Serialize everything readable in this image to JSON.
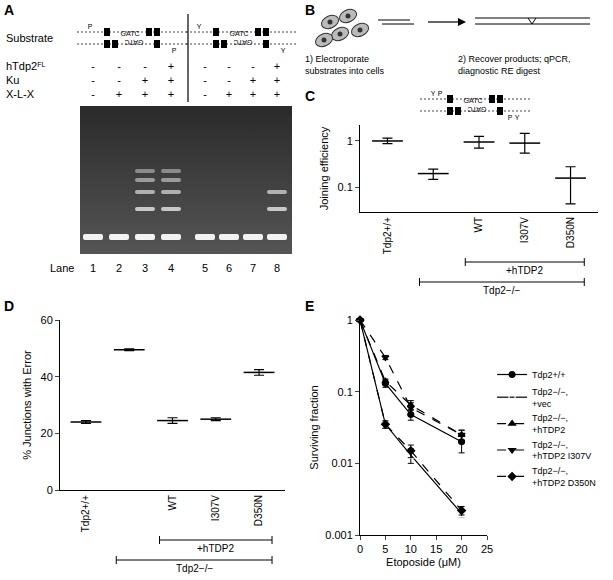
{
  "panel_letters": [
    "A",
    "B",
    "C",
    "D",
    "E"
  ],
  "panel_a": {
    "substrate_label": "Substrate",
    "substrates": [
      {
        "end": "P",
        "overhang": "GATC"
      },
      {
        "end": "Y",
        "overhang": "GATC"
      }
    ],
    "rows": [
      {
        "label": "hTdp2",
        "sup": "FL",
        "signs": [
          "-",
          "-",
          "-",
          "+",
          "-",
          "-",
          "-",
          "+"
        ]
      },
      {
        "label": "Ku",
        "signs": [
          "-",
          "-",
          "+",
          "+",
          "-",
          "-",
          "+",
          "+"
        ]
      },
      {
        "label": "X-L-X",
        "signs": [
          "-",
          "+",
          "+",
          "+",
          "-",
          "+",
          "+",
          "+"
        ]
      }
    ],
    "lane_label": "Lane",
    "lanes": [
      1,
      2,
      3,
      4,
      5,
      6,
      7,
      8
    ],
    "bands": [
      [
        1
      ],
      [
        1
      ],
      [
        1,
        2,
        3,
        4,
        5
      ],
      [
        1,
        2,
        3,
        4,
        5
      ],
      [
        1
      ],
      [
        1
      ],
      [
        1
      ],
      [
        1,
        2,
        3
      ]
    ]
  },
  "panel_b": {
    "step1": [
      "1) Electroporate",
      "substrates into cells"
    ],
    "step2": [
      "2) Recover products; qPCR,",
      "diagnostic RE digest"
    ]
  },
  "icon_c": {
    "ends": [
      "Y",
      "P"
    ],
    "overhang": "GATC"
  },
  "chart_data": [
    {
      "type": "scatter",
      "y_label": "Joining efficiency",
      "categories": [
        "Tdp2+/+",
        null,
        "WT",
        "I307V",
        "D350N"
      ],
      "values": [
        1.0,
        0.2,
        0.95,
        0.9,
        0.16
      ],
      "error_plus": [
        0.15,
        0.05,
        0.3,
        0.55,
        0.12
      ],
      "error_minus": [
        0.12,
        0.05,
        0.25,
        0.35,
        0.115
      ],
      "groups": [
        {
          "label": "+hTDP2",
          "from": 2,
          "to": 4
        },
        {
          "label": "Tdp2−/−",
          "from": 1,
          "to": 4
        }
      ],
      "log": "y",
      "ylim": [
        0.03,
        2.2
      ],
      "yticks": [
        0.1,
        1
      ],
      "marker": "line",
      "color": "#000000"
    },
    {
      "type": "scatter",
      "y_label": "% Junctions with Error",
      "categories": [
        "Tdp2+/+",
        null,
        "WT",
        "I307V",
        "D350N"
      ],
      "values": [
        24,
        49.5,
        24.5,
        25,
        41.5
      ],
      "error_plus": [
        0.5,
        0.3,
        1,
        0.5,
        1
      ],
      "error_minus": [
        0.5,
        0.3,
        1,
        0.5,
        1
      ],
      "groups": [
        {
          "label": "+hTDP2",
          "from": 2,
          "to": 4
        },
        {
          "label": "Tdp2−/−",
          "from": 1,
          "to": 4
        }
      ],
      "ylim": [
        0,
        60
      ],
      "yticks": [
        0,
        20,
        40,
        60
      ],
      "marker": "line",
      "color": "#000000"
    },
    {
      "type": "line",
      "x_label": "Etoposide (μM)",
      "y_label": "Surviving fraction",
      "x": [
        0,
        5,
        10,
        20
      ],
      "series": [
        {
          "name": "Tdp2+/+",
          "marker": "circle",
          "line_style": "solid",
          "color": "#000000",
          "values": [
            1,
            0.13,
            0.048,
            0.02
          ],
          "error": [
            0,
            0.015,
            0.008,
            0.006
          ]
        },
        {
          "name": "Tdp2−/−, +vec",
          "marker": "square-open",
          "line_style": "solid",
          "color": "#000000",
          "values": [
            1,
            0.035,
            0.013,
            0.002
          ],
          "error": [
            0,
            0.004,
            0.003,
            0.0002
          ]
        },
        {
          "name": "Tdp2−/−, +hTDP2",
          "marker": "triangle-up",
          "line_style": "dash",
          "color": "#000000",
          "values": [
            1,
            0.14,
            0.065,
            0.025
          ],
          "error": [
            0,
            0.01,
            0.01,
            0.004
          ]
        },
        {
          "name": "Tdp2−/−, +hTDP2 I307V",
          "marker": "triangle-down",
          "line_style": "dash",
          "color": "#000000",
          "values": [
            1,
            0.3,
            0.06,
            0.025
          ],
          "error": [
            0,
            0.02,
            0.01,
            0.004
          ]
        },
        {
          "name": "Tdp2−/−, +hTDP2 D350N",
          "marker": "diamond",
          "line_style": "dash",
          "color": "#000000",
          "values": [
            1,
            0.035,
            0.015,
            0.0022
          ],
          "error": [
            0,
            0.004,
            0.003,
            0.0003
          ]
        }
      ],
      "log": "y",
      "xlim": [
        0,
        25
      ],
      "xticks": [
        0,
        5,
        10,
        15,
        20,
        25
      ],
      "ylim": [
        0.001,
        1
      ],
      "yticks": [
        0.001,
        0.01,
        0.1,
        1
      ],
      "legend": "right"
    }
  ]
}
